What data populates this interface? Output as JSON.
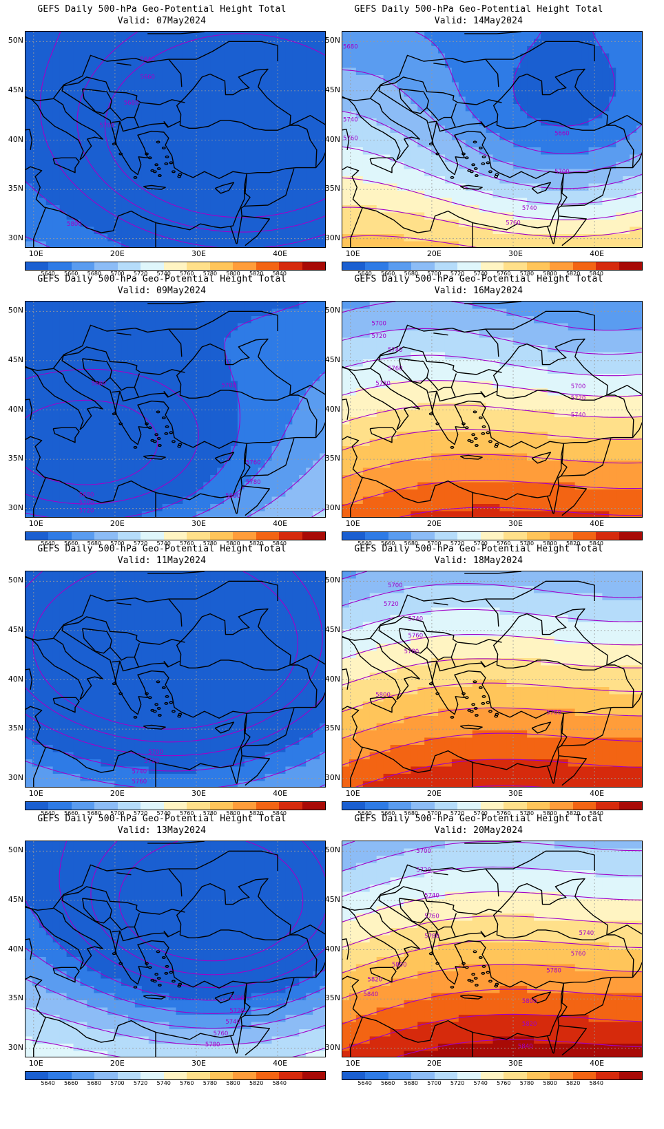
{
  "colorbar": {
    "levels": [
      "5640",
      "5660",
      "5680",
      "5700",
      "5720",
      "5740",
      "5760",
      "5780",
      "5800",
      "5820",
      "5840"
    ],
    "colors": [
      "#1a5fd1",
      "#2e7be6",
      "#5a9cf0",
      "#8cbcf6",
      "#b5dcfa",
      "#dff6fb",
      "#fff4c2",
      "#ffe08a",
      "#ffc55a",
      "#ff9d3a",
      "#f36413",
      "#d62a0c",
      "#a80a06"
    ]
  },
  "axes": {
    "lat_labels": [
      "50N",
      "45N",
      "40N",
      "35N",
      "30N"
    ],
    "lon_labels": [
      "10E",
      "20E",
      "30E",
      "40E"
    ]
  },
  "contour_color": "#a100c8",
  "coast_color": "#000000",
  "panels": [
    {
      "id": "p07",
      "title": "GEFS Daily 500-hPa Geo-Potential Height Total",
      "valid": "Valid: 07May2024",
      "trough": 0.95,
      "ridge": 0.25,
      "center_lon": 36,
      "center_lat": 40,
      "labels": [
        {
          "text": "5640",
          "lon": 24,
          "lat": 48
        },
        {
          "text": "5660",
          "lon": 24,
          "lat": 46.2
        },
        {
          "text": "5680",
          "lon": 22,
          "lat": 43.6
        },
        {
          "text": "5700",
          "lon": 19,
          "lat": 41.3
        },
        {
          "text": "5800",
          "lon": 15,
          "lat": 31.3
        }
      ]
    },
    {
      "id": "p14",
      "title": "GEFS Daily 500-hPa Geo-Potential Height Total",
      "valid": "Valid: 14May2024",
      "trough": 0.55,
      "ridge": 0.8,
      "center_lon": 36,
      "center_lat": 41,
      "labels": [
        {
          "text": "5680",
          "lon": 10,
          "lat": 49.3
        },
        {
          "text": "5740",
          "lon": 10,
          "lat": 41.9
        },
        {
          "text": "5760",
          "lon": 10,
          "lat": 40
        },
        {
          "text": "5660",
          "lon": 36,
          "lat": 40.5
        },
        {
          "text": "5700",
          "lon": 36,
          "lat": 36.6
        },
        {
          "text": "5740",
          "lon": 32,
          "lat": 32.9
        },
        {
          "text": "5760",
          "lon": 30,
          "lat": 31.4
        }
      ]
    },
    {
      "id": "p09",
      "title": "GEFS Daily 500-hPa Geo-Potential Height Total",
      "valid": "Valid: 09May2024",
      "trough": 0.75,
      "ridge": 0.45,
      "center_lon": 16,
      "center_lat": 35,
      "labels": [
        {
          "text": "5680",
          "lon": 18,
          "lat": 42.5
        },
        {
          "text": "5700",
          "lon": 34,
          "lat": 42.3
        },
        {
          "text": "5760",
          "lon": 37,
          "lat": 34.5
        },
        {
          "text": "5780",
          "lon": 37,
          "lat": 32.5
        },
        {
          "text": "5800",
          "lon": 34.5,
          "lat": 31.1
        },
        {
          "text": "5680",
          "lon": 16.5,
          "lat": 31.2
        },
        {
          "text": "5700",
          "lon": 16.5,
          "lat": 30.4
        },
        {
          "text": "5720",
          "lon": 16.5,
          "lat": 29.6
        }
      ]
    },
    {
      "id": "p16",
      "title": "GEFS Daily 500-hPa Geo-Potential Height Total",
      "valid": "Valid: 16May2024",
      "trough": 0.2,
      "ridge": 1.0,
      "center_lon": 40,
      "center_lat": 49,
      "labels": [
        {
          "text": "5700",
          "lon": 13.5,
          "lat": 48.6
        },
        {
          "text": "5720",
          "lon": 13.5,
          "lat": 47.3
        },
        {
          "text": "5740",
          "lon": 15.5,
          "lat": 45.9
        },
        {
          "text": "5760",
          "lon": 15.5,
          "lat": 44
        },
        {
          "text": "5780",
          "lon": 14,
          "lat": 42.5
        },
        {
          "text": "5700",
          "lon": 38,
          "lat": 42.2
        },
        {
          "text": "5720",
          "lon": 38,
          "lat": 41
        },
        {
          "text": "5740",
          "lon": 38,
          "lat": 39.3
        }
      ]
    },
    {
      "id": "p11",
      "title": "GEFS Daily 500-hPa Geo-Potential Height Total",
      "valid": "Valid: 11May2024",
      "trough": 1.0,
      "ridge": 0.35,
      "center_lon": 26,
      "center_lat": 42,
      "labels": [
        {
          "text": "5700",
          "lon": 25,
          "lat": 32.5
        },
        {
          "text": "5720",
          "lon": 24.5,
          "lat": 31.6
        },
        {
          "text": "5740",
          "lon": 23,
          "lat": 30.5
        },
        {
          "text": "5760",
          "lon": 23,
          "lat": 29.5
        }
      ]
    },
    {
      "id": "p18",
      "title": "GEFS Daily 500-hPa Geo-Potential Height Total",
      "valid": "Valid: 18May2024",
      "trough": 0.1,
      "ridge": 1.05,
      "center_lon": 40,
      "center_lat": 50,
      "labels": [
        {
          "text": "5700",
          "lon": 15.5,
          "lat": 49.4
        },
        {
          "text": "5720",
          "lon": 15,
          "lat": 47.5
        },
        {
          "text": "5740",
          "lon": 18,
          "lat": 46
        },
        {
          "text": "5760",
          "lon": 18,
          "lat": 44.3
        },
        {
          "text": "5780",
          "lon": 17.5,
          "lat": 42.7
        },
        {
          "text": "5800",
          "lon": 14,
          "lat": 38.3
        },
        {
          "text": "5760",
          "lon": 35,
          "lat": 36.5
        }
      ]
    },
    {
      "id": "p13",
      "title": "GEFS Daily 500-hPa Geo-Potential Height Total",
      "valid": "Valid: 13May2024",
      "trough": 0.9,
      "ridge": 0.55,
      "center_lon": 32,
      "center_lat": 43,
      "labels": [
        {
          "text": "5700",
          "lon": 35,
          "lat": 34.9
        },
        {
          "text": "5720",
          "lon": 35,
          "lat": 33.6
        },
        {
          "text": "5740",
          "lon": 34.5,
          "lat": 32.5
        },
        {
          "text": "5760",
          "lon": 33,
          "lat": 31.3
        },
        {
          "text": "5780",
          "lon": 32,
          "lat": 30.2
        }
      ]
    },
    {
      "id": "p20",
      "title": "GEFS Daily 500-hPa Geo-Potential Height Total",
      "valid": "Valid: 20May2024",
      "trough": 0.05,
      "ridge": 1.1,
      "center_lon": 40,
      "center_lat": 50,
      "labels": [
        {
          "text": "5700",
          "lon": 19,
          "lat": 49.8
        },
        {
          "text": "5720",
          "lon": 19,
          "lat": 47.9
        },
        {
          "text": "5740",
          "lon": 20,
          "lat": 45.3
        },
        {
          "text": "5760",
          "lon": 20,
          "lat": 43.2
        },
        {
          "text": "5780",
          "lon": 20,
          "lat": 41.2
        },
        {
          "text": "5740",
          "lon": 39,
          "lat": 41.5
        },
        {
          "text": "5760",
          "lon": 38,
          "lat": 39.4
        },
        {
          "text": "5780",
          "lon": 35,
          "lat": 37.7
        },
        {
          "text": "5800",
          "lon": 16,
          "lat": 38.3
        },
        {
          "text": "5820",
          "lon": 13,
          "lat": 36.8
        },
        {
          "text": "5840",
          "lon": 12.5,
          "lat": 35.3
        },
        {
          "text": "5800",
          "lon": 32,
          "lat": 34.6
        },
        {
          "text": "5820",
          "lon": 32,
          "lat": 32.3
        },
        {
          "text": "5840",
          "lon": 31.5,
          "lat": 30
        }
      ]
    }
  ]
}
